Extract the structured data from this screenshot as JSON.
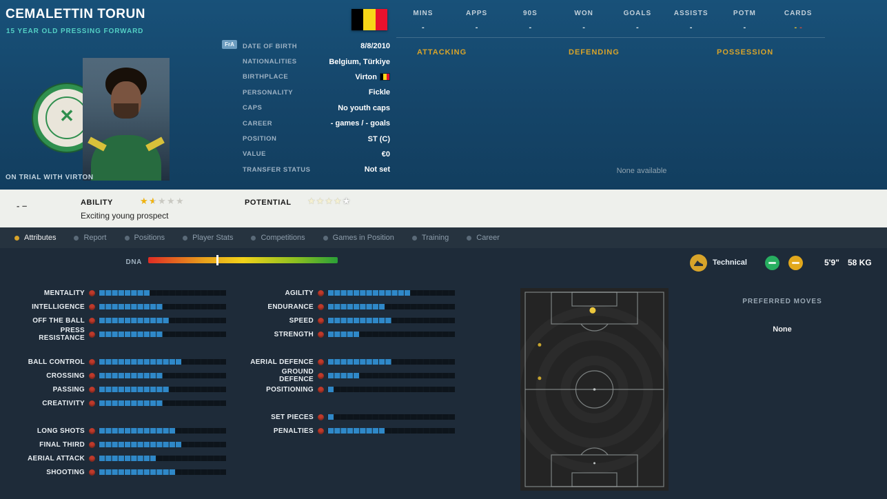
{
  "colors": {
    "accent_gold": "#d8a42a",
    "teal": "#53cfc4",
    "bar_blue": "#2f88c8",
    "attr_red": "#bf3a2b",
    "star_gold": "#f1b40f",
    "flag_black": "#000000",
    "flag_yellow": "#f7d618",
    "flag_red": "#e8112d"
  },
  "header": {
    "name": "CEMALETTIN TORUN",
    "subtitle": "15 YEAR OLD PRESSING FORWARD",
    "trial_note": "ON TRIAL WITH VIRTON",
    "fra_badge": "FrA",
    "info_rows": [
      {
        "label": "DATE OF BIRTH",
        "value": "8/8/2010"
      },
      {
        "label": "NATIONALITIES",
        "value": "Belgium, Türkiye"
      },
      {
        "label": "BIRTHPLACE",
        "value": "Virton",
        "flag": true
      },
      {
        "label": "PERSONALITY",
        "value": "Fickle"
      },
      {
        "label": "CAPS",
        "value": "No youth caps"
      },
      {
        "label": "CAREER",
        "value": "- games / - goals"
      },
      {
        "label": "POSITION",
        "value": "ST (C)"
      },
      {
        "label": "VALUE",
        "value": "€0"
      },
      {
        "label": "TRANSFER STATUS",
        "value": "Not set"
      }
    ]
  },
  "top_stats": {
    "columns": [
      {
        "label": "MINS",
        "value": "-"
      },
      {
        "label": "APPS",
        "value": "-"
      },
      {
        "label": "90S",
        "value": "-"
      },
      {
        "label": "WON",
        "value": "-"
      },
      {
        "label": "GOALS",
        "value": "-"
      },
      {
        "label": "ASSISTS",
        "value": "-"
      },
      {
        "label": "POTM",
        "value": "-"
      },
      {
        "label": "CARDS",
        "value": "-",
        "value_red": "-"
      }
    ],
    "sections": [
      "ATTACKING",
      "DEFENDING",
      "POSSESSION"
    ],
    "empty_text": "None available"
  },
  "ability_bar": {
    "left_dashes": "- –",
    "ability_label": "ABILITY",
    "ability_stars": 1.5,
    "stars_total": 5,
    "ability_note": "Exciting young prospect",
    "potential_label": "POTENTIAL",
    "potential_stars_pale": 4,
    "potential_stars_bright": 1
  },
  "tabs": [
    {
      "label": "Attributes",
      "active": true
    },
    {
      "label": "Report"
    },
    {
      "label": "Positions"
    },
    {
      "label": "Player Stats"
    },
    {
      "label": "Competitions"
    },
    {
      "label": "Games in Position"
    },
    {
      "label": "Training"
    },
    {
      "label": "Career"
    }
  ],
  "dna": {
    "label": "DNA",
    "marker_pct": 36
  },
  "physical": {
    "style_label": "Technical",
    "height": "5'9\"",
    "weight": "58 KG"
  },
  "attributes": {
    "scale_max": 20,
    "columns": [
      {
        "groups": [
          [
            {
              "name": "MENTALITY",
              "value": 8
            },
            {
              "name": "INTELLIGENCE",
              "value": 10
            },
            {
              "name": "OFF THE BALL",
              "value": 11
            },
            {
              "name": "PRESS RESISTANCE",
              "value": 10
            }
          ],
          [
            {
              "name": "BALL CONTROL",
              "value": 13
            },
            {
              "name": "CROSSING",
              "value": 10
            },
            {
              "name": "PASSING",
              "value": 11
            },
            {
              "name": "CREATIVITY",
              "value": 10
            }
          ],
          [
            {
              "name": "LONG SHOTS",
              "value": 12
            },
            {
              "name": "FINAL THIRD",
              "value": 13
            },
            {
              "name": "AERIAL ATTACK",
              "value": 9
            },
            {
              "name": "SHOOTING",
              "value": 12
            }
          ]
        ]
      },
      {
        "groups": [
          [
            {
              "name": "AGILITY",
              "value": 13
            },
            {
              "name": "ENDURANCE",
              "value": 9
            },
            {
              "name": "SPEED",
              "value": 10
            },
            {
              "name": "STRENGTH",
              "value": 5
            }
          ],
          [
            {
              "name": "AERIAL DEFENCE",
              "value": 10
            },
            {
              "name": "GROUND DEFENCE",
              "value": 5
            },
            {
              "name": "POSITIONING",
              "value": 1
            }
          ],
          [
            {
              "name": "SET PIECES",
              "value": 1
            },
            {
              "name": "PENALTIES",
              "value": 9
            }
          ]
        ]
      }
    ]
  },
  "pitch": {
    "markers": [
      {
        "x": 48.8,
        "y": 11,
        "r": 4.5,
        "main": true
      },
      {
        "x": 13,
        "y": 28,
        "r": 2.5
      },
      {
        "x": 13,
        "y": 44.5,
        "r": 2.5
      }
    ]
  },
  "preferred_moves": {
    "label": "PREFERRED MOVES",
    "value": "None"
  }
}
